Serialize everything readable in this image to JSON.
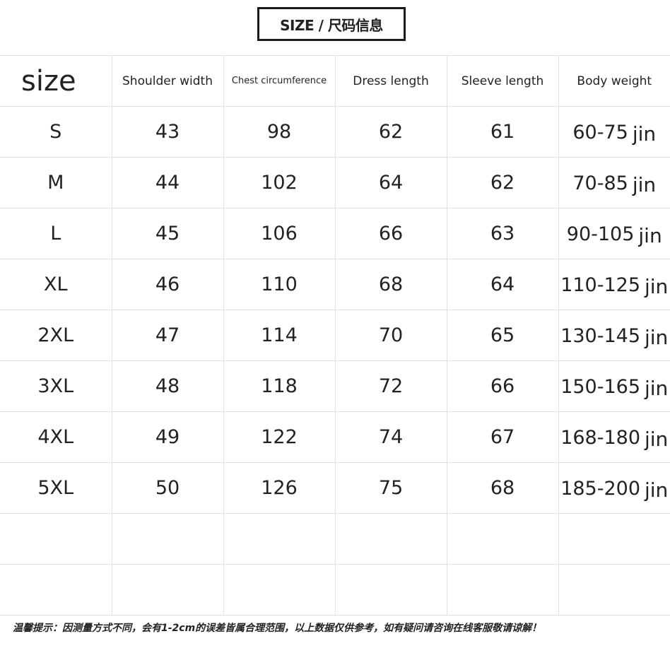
{
  "title": "SIZE / 尺码信息",
  "headers": [
    "size",
    "Shoulder width",
    "Chest circumference",
    "Dress length",
    "Sleeve length",
    "Body weight"
  ],
  "weight_unit": "jin",
  "rows": [
    {
      "size": "S",
      "shoulder": "43",
      "chest": "98",
      "length": "62",
      "sleeve": "61",
      "weight": "60-75"
    },
    {
      "size": "M",
      "shoulder": "44",
      "chest": "102",
      "length": "64",
      "sleeve": "62",
      "weight": "70-85"
    },
    {
      "size": "L",
      "shoulder": "45",
      "chest": "106",
      "length": "66",
      "sleeve": "63",
      "weight": "90-105"
    },
    {
      "size": "XL",
      "shoulder": "46",
      "chest": "110",
      "length": "68",
      "sleeve": "64",
      "weight": "110-125"
    },
    {
      "size": "2XL",
      "shoulder": "47",
      "chest": "114",
      "length": "70",
      "sleeve": "65",
      "weight": "130-145"
    },
    {
      "size": "3XL",
      "shoulder": "48",
      "chest": "118",
      "length": "72",
      "sleeve": "66",
      "weight": "150-165"
    },
    {
      "size": "4XL",
      "shoulder": "49",
      "chest": "122",
      "length": "74",
      "sleeve": "67",
      "weight": "168-180"
    },
    {
      "size": "5XL",
      "shoulder": "50",
      "chest": "126",
      "length": "75",
      "sleeve": "68",
      "weight": "185-200"
    }
  ],
  "empty_rows": 2,
  "note": "温馨提示：因测量方式不同，会有1-2cm的误差皆属合理范围，以上数据仅供参考，如有疑问请咨询在线客服敬请谅解！"
}
